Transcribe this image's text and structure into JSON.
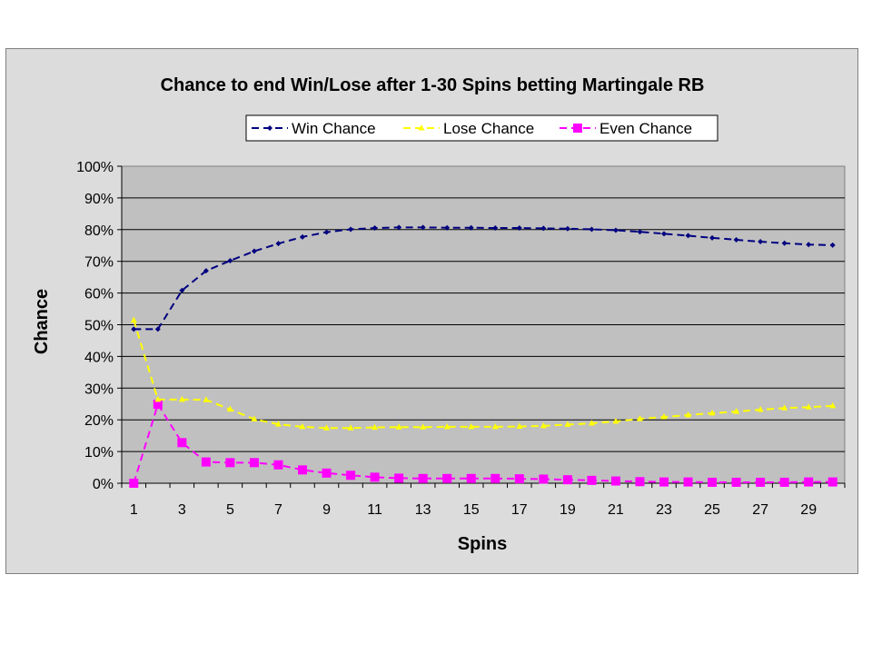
{
  "chart_data": {
    "type": "line",
    "title": "Chance to end Win/Lose after 1-30 Spins betting Martingale RB",
    "xlabel": "Spins",
    "ylabel": "Chance",
    "x": [
      1,
      2,
      3,
      4,
      5,
      6,
      7,
      8,
      9,
      10,
      11,
      12,
      13,
      14,
      15,
      16,
      17,
      18,
      19,
      20,
      21,
      22,
      23,
      24,
      25,
      26,
      27,
      28,
      29,
      30
    ],
    "x_tick_labels": [
      "1",
      "3",
      "5",
      "7",
      "9",
      "11",
      "13",
      "15",
      "17",
      "19",
      "21",
      "23",
      "25",
      "27",
      "29"
    ],
    "ylim": [
      0,
      100
    ],
    "y_tick_labels": [
      "0%",
      "10%",
      "20%",
      "30%",
      "40%",
      "50%",
      "60%",
      "70%",
      "80%",
      "90%",
      "100%"
    ],
    "grid": true,
    "legend_position": "top",
    "series": [
      {
        "name": "Win Chance",
        "color": "#000080",
        "marker": "diamond",
        "values": [
          48.6,
          48.6,
          60.8,
          67.0,
          70.2,
          73.2,
          75.6,
          77.7,
          79.2,
          80.1,
          80.5,
          80.7,
          80.7,
          80.6,
          80.6,
          80.5,
          80.5,
          80.4,
          80.3,
          80.1,
          79.8,
          79.3,
          78.7,
          78.1,
          77.4,
          76.8,
          76.2,
          75.7,
          75.3,
          75.1
        ]
      },
      {
        "name": "Lose Chance",
        "color": "#ffff00",
        "marker": "triangle",
        "values": [
          51.4,
          26.4,
          26.4,
          26.3,
          23.3,
          20.2,
          18.6,
          17.8,
          17.4,
          17.4,
          17.6,
          17.7,
          17.7,
          17.8,
          17.8,
          17.8,
          17.9,
          18.1,
          18.5,
          18.9,
          19.5,
          20.3,
          20.9,
          21.5,
          22.1,
          22.6,
          23.2,
          23.7,
          24.0,
          24.4
        ]
      },
      {
        "name": "Even Chance",
        "color": "#ff00ff",
        "marker": "square",
        "values": [
          0.0,
          24.9,
          12.8,
          6.7,
          6.5,
          6.5,
          5.8,
          4.2,
          3.2,
          2.5,
          1.9,
          1.6,
          1.5,
          1.5,
          1.5,
          1.5,
          1.4,
          1.3,
          1.1,
          0.9,
          0.7,
          0.5,
          0.4,
          0.4,
          0.3,
          0.3,
          0.3,
          0.3,
          0.4,
          0.4
        ]
      }
    ]
  }
}
